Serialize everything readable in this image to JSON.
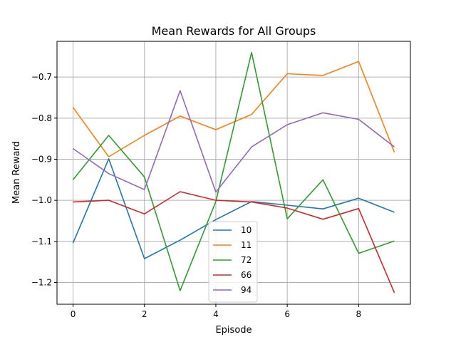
{
  "chart_data": {
    "type": "line",
    "title": "Mean Rewards for All Groups",
    "xlabel": "Episode",
    "ylabel": "Mean Reward",
    "xlim": [
      -0.45,
      9.45
    ],
    "ylim": [
      -1.253,
      -0.613
    ],
    "x_ticks": [
      0,
      2,
      4,
      6,
      8
    ],
    "x_tick_labels": [
      "0",
      "2",
      "4",
      "6",
      "8"
    ],
    "y_ticks": [
      -1.2,
      -1.1,
      -1.0,
      -0.9,
      -0.8,
      -0.7
    ],
    "y_tick_labels": [
      "−1.2",
      "−1.1",
      "−1.0",
      "−0.9",
      "−0.8",
      "−0.7"
    ],
    "grid": true,
    "legend_position": "lower-center",
    "x": [
      0,
      1,
      2,
      3,
      4,
      5,
      6,
      7,
      8,
      9
    ],
    "series": [
      {
        "name": "10",
        "color": "#1f77b4",
        "values": [
          -1.104,
          -0.899,
          -1.142,
          -1.097,
          -1.047,
          -1.003,
          -1.012,
          -1.021,
          -0.995,
          -1.029
        ]
      },
      {
        "name": "11",
        "color": "#ff7f0e",
        "values": [
          -0.774,
          -0.894,
          -0.842,
          -0.795,
          -0.828,
          -0.791,
          -0.692,
          -0.696,
          -0.662,
          -0.883
        ]
      },
      {
        "name": "72",
        "color": "#2ca02c",
        "values": [
          -0.95,
          -0.842,
          -0.943,
          -1.22,
          -1.003,
          -0.64,
          -1.045,
          -0.95,
          -1.129,
          -1.099
        ]
      },
      {
        "name": "66",
        "color": "#d62728",
        "values": [
          -1.004,
          -1.0,
          -1.033,
          -0.979,
          -1.0,
          -1.004,
          -1.019,
          -1.046,
          -1.02,
          -1.225
        ]
      },
      {
        "name": "94",
        "color": "#9467bd",
        "values": [
          -0.874,
          -0.935,
          -0.974,
          -0.733,
          -0.98,
          -0.87,
          -0.816,
          -0.787,
          -0.803,
          -0.87
        ]
      }
    ]
  }
}
